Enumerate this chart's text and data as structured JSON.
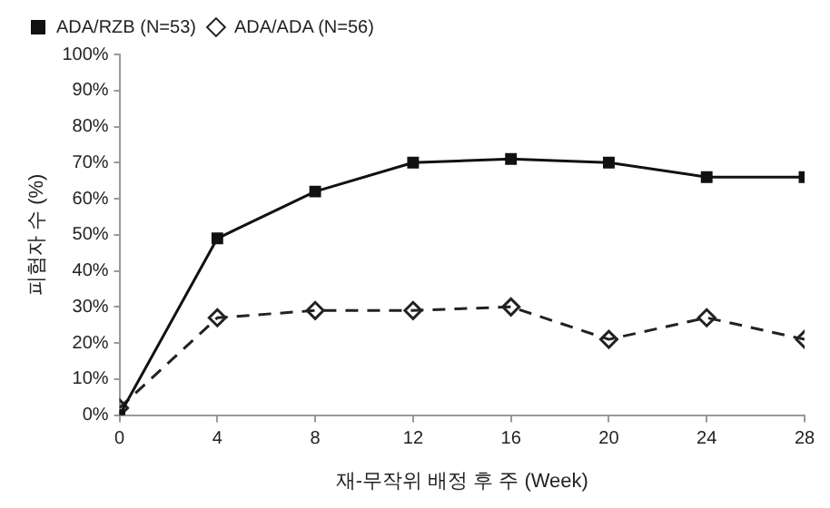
{
  "chart_data": {
    "type": "line",
    "xlabel": "재-무작위 배정 후 주 (Week)",
    "ylabel": "피험자 수 (%)",
    "x": [
      0,
      4,
      8,
      12,
      16,
      20,
      24,
      28
    ],
    "series": [
      {
        "name": "ADA/RZB (N=53)",
        "color": "#111111",
        "values": [
          0,
          49,
          62,
          70,
          71,
          70,
          66,
          66
        ],
        "marker": "square",
        "line_style": "solid"
      },
      {
        "name": "ADA/ADA (N=56)",
        "color": "#222222",
        "values": [
          2,
          27,
          29,
          29,
          30,
          21,
          27,
          21
        ],
        "marker": "diamond",
        "line_style": "dashed"
      }
    ],
    "xlim": [
      0,
      28
    ],
    "xticks": [
      0,
      4,
      8,
      12,
      16,
      20,
      24,
      28
    ],
    "ylim": [
      0,
      100
    ],
    "yticks": [
      {
        "value": 0,
        "label": "0%"
      },
      {
        "value": 10,
        "label": "10%"
      },
      {
        "value": 20,
        "label": "20%"
      },
      {
        "value": 30,
        "label": "30%"
      },
      {
        "value": 40,
        "label": "40%"
      },
      {
        "value": 50,
        "label": "50%"
      },
      {
        "value": 60,
        "label": "60%"
      },
      {
        "value": 70,
        "label": "70%"
      },
      {
        "value": 80,
        "label": "80%"
      },
      {
        "value": 90,
        "label": "90%"
      },
      {
        "value": 100,
        "label": "100%"
      }
    ],
    "grid": false,
    "legend": "top left"
  }
}
